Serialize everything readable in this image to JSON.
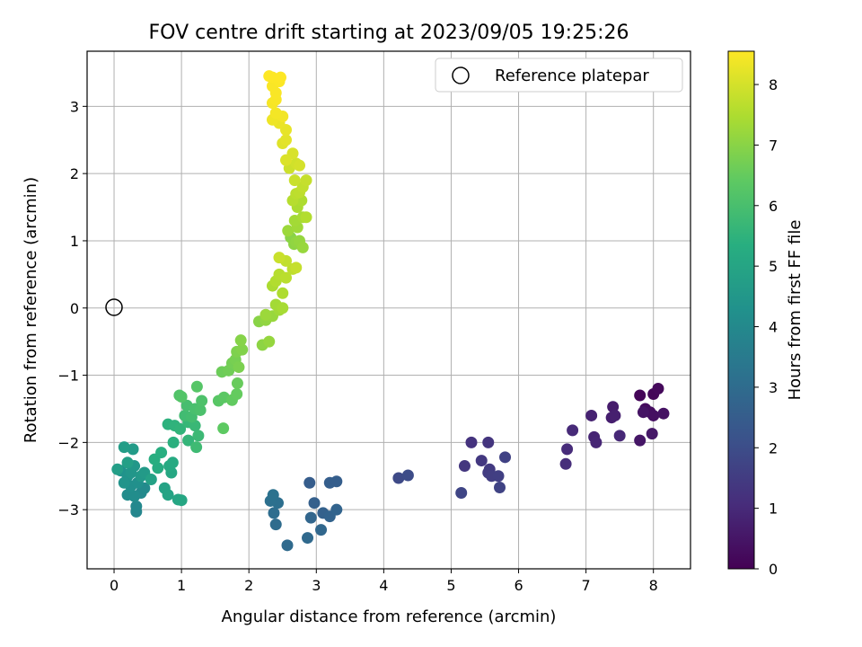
{
  "chart_data": {
    "type": "scatter",
    "title": "FOV centre drift starting at 2023/09/05 19:25:26",
    "xlabel": "Angular distance from reference (arcmin)",
    "ylabel": "Rotation from reference (arcmin)",
    "xlim": [
      -0.4,
      8.55
    ],
    "ylim": [
      -3.88,
      3.82
    ],
    "xticks": [
      0,
      1,
      2,
      3,
      4,
      5,
      6,
      7,
      8
    ],
    "yticks": [
      -3,
      -2,
      -1,
      0,
      1,
      2,
      3
    ],
    "grid": true,
    "legend": {
      "position": "top-right",
      "entries": [
        "Reference platepar"
      ]
    },
    "reference_point": {
      "x": 0,
      "y": 0,
      "label": "Reference platepar"
    },
    "colorbar": {
      "label": "Hours from first FF file",
      "colormap": "viridis",
      "range": [
        0,
        8.55
      ],
      "ticks": [
        0,
        1,
        2,
        3,
        4,
        5,
        6,
        7,
        8
      ]
    },
    "points": [
      [
        7.8,
        -1.3,
        0.1
      ],
      [
        8.0,
        -1.28,
        0.15
      ],
      [
        8.07,
        -1.2,
        0.2
      ],
      [
        7.88,
        -1.5,
        0.25
      ],
      [
        7.95,
        -1.55,
        0.3
      ],
      [
        8.0,
        -1.6,
        0.35
      ],
      [
        8.15,
        -1.57,
        0.4
      ],
      [
        7.85,
        -1.55,
        0.45
      ],
      [
        7.8,
        -1.97,
        0.5
      ],
      [
        7.98,
        -1.87,
        0.55
      ],
      [
        7.4,
        -1.47,
        0.65
      ],
      [
        7.38,
        -1.63,
        0.7
      ],
      [
        7.43,
        -1.6,
        0.75
      ],
      [
        7.08,
        -1.6,
        0.8
      ],
      [
        7.12,
        -1.92,
        0.85
      ],
      [
        7.15,
        -2.0,
        0.9
      ],
      [
        7.5,
        -1.9,
        0.95
      ],
      [
        6.8,
        -1.82,
        1.0
      ],
      [
        6.72,
        -2.1,
        1.05
      ],
      [
        6.7,
        -2.32,
        1.1
      ],
      [
        5.3,
        -2.0,
        1.25
      ],
      [
        5.55,
        -2.0,
        1.3
      ],
      [
        5.2,
        -2.35,
        1.35
      ],
      [
        5.45,
        -2.27,
        1.4
      ],
      [
        5.57,
        -2.4,
        1.45
      ],
      [
        5.55,
        -2.45,
        1.5
      ],
      [
        5.6,
        -2.5,
        1.55
      ],
      [
        5.7,
        -2.5,
        1.6
      ],
      [
        5.8,
        -2.22,
        1.65
      ],
      [
        5.72,
        -2.67,
        1.7
      ],
      [
        5.15,
        -2.75,
        1.75
      ],
      [
        4.22,
        -2.53,
        1.9
      ],
      [
        4.36,
        -2.49,
        1.95
      ],
      [
        2.9,
        -2.6,
        2.5
      ],
      [
        3.2,
        -2.6,
        2.55
      ],
      [
        3.3,
        -2.58,
        2.55
      ],
      [
        2.97,
        -2.9,
        2.6
      ],
      [
        3.1,
        -3.05,
        2.65
      ],
      [
        3.2,
        -3.1,
        2.7
      ],
      [
        3.3,
        -3.0,
        2.75
      ],
      [
        2.92,
        -3.12,
        2.8
      ],
      [
        3.07,
        -3.3,
        2.85
      ],
      [
        2.87,
        -3.42,
        2.9
      ],
      [
        2.57,
        -3.53,
        2.95
      ],
      [
        2.4,
        -3.22,
        3.0
      ],
      [
        2.37,
        -3.05,
        3.05
      ],
      [
        2.43,
        -2.9,
        3.1
      ],
      [
        2.32,
        -2.87,
        3.15
      ],
      [
        2.36,
        -2.78,
        3.2
      ],
      [
        0.33,
        -3.03,
        3.9
      ],
      [
        0.33,
        -2.95,
        3.95
      ],
      [
        0.4,
        -2.75,
        4.0
      ],
      [
        0.45,
        -2.68,
        4.05
      ],
      [
        0.2,
        -2.78,
        4.1
      ],
      [
        0.3,
        -2.8,
        4.15
      ],
      [
        0.25,
        -2.65,
        4.2
      ],
      [
        0.35,
        -2.6,
        4.25
      ],
      [
        0.1,
        -2.42,
        4.3
      ],
      [
        0.2,
        -2.5,
        4.35
      ],
      [
        0.15,
        -2.6,
        4.4
      ],
      [
        0.25,
        -2.45,
        4.45
      ],
      [
        0.3,
        -2.35,
        4.5
      ],
      [
        0.4,
        -2.5,
        4.55
      ],
      [
        0.45,
        -2.45,
        4.6
      ],
      [
        0.28,
        -2.1,
        4.65
      ],
      [
        0.15,
        -2.07,
        4.7
      ],
      [
        0.05,
        -2.4,
        4.75
      ],
      [
        0.2,
        -2.3,
        4.8
      ],
      [
        0.55,
        -2.55,
        4.85
      ],
      [
        0.75,
        -2.68,
        4.9
      ],
      [
        0.8,
        -2.78,
        4.95
      ],
      [
        0.95,
        -2.85,
        5.0
      ],
      [
        1.0,
        -2.86,
        5.05
      ],
      [
        0.85,
        -2.45,
        5.1
      ],
      [
        0.82,
        -2.35,
        5.15
      ],
      [
        0.87,
        -2.3,
        5.2
      ],
      [
        0.65,
        -2.38,
        5.25
      ],
      [
        0.6,
        -2.25,
        5.3
      ],
      [
        0.7,
        -2.15,
        5.35
      ],
      [
        0.88,
        -2.0,
        5.4
      ],
      [
        0.8,
        -1.73,
        5.45
      ],
      [
        0.9,
        -1.75,
        5.5
      ],
      [
        0.98,
        -1.8,
        5.55
      ],
      [
        1.1,
        -1.97,
        5.6
      ],
      [
        1.1,
        -1.7,
        5.65
      ],
      [
        1.2,
        -1.75,
        5.7
      ],
      [
        1.25,
        -1.9,
        5.75
      ],
      [
        1.22,
        -2.07,
        5.8
      ],
      [
        1.05,
        -1.6,
        5.85
      ],
      [
        1.15,
        -1.62,
        5.9
      ],
      [
        1.08,
        -1.45,
        5.95
      ],
      [
        1.2,
        -1.5,
        6.0
      ],
      [
        1.28,
        -1.52,
        6.05
      ],
      [
        1.3,
        -1.38,
        6.1
      ],
      [
        0.97,
        -1.3,
        6.15
      ],
      [
        1.0,
        -1.32,
        6.2
      ],
      [
        1.23,
        -1.17,
        6.25
      ],
      [
        1.55,
        -1.38,
        6.3
      ],
      [
        1.63,
        -1.33,
        6.35
      ],
      [
        1.62,
        -1.79,
        6.4
      ],
      [
        1.75,
        -1.37,
        6.45
      ],
      [
        1.82,
        -1.28,
        6.5
      ],
      [
        1.83,
        -1.12,
        6.55
      ],
      [
        1.6,
        -0.95,
        6.6
      ],
      [
        1.7,
        -0.93,
        6.65
      ],
      [
        1.75,
        -0.82,
        6.7
      ],
      [
        1.8,
        -0.77,
        6.75
      ],
      [
        1.85,
        -0.88,
        6.8
      ],
      [
        1.82,
        -0.65,
        6.85
      ],
      [
        1.9,
        -0.62,
        6.9
      ],
      [
        1.88,
        -0.48,
        6.95
      ],
      [
        2.15,
        -0.2,
        7.0
      ],
      [
        2.2,
        -0.55,
        7.05
      ],
      [
        2.25,
        -0.18,
        7.1
      ],
      [
        2.3,
        -0.5,
        7.15
      ],
      [
        2.35,
        -0.12,
        7.2
      ],
      [
        2.25,
        -0.1,
        7.25
      ],
      [
        2.45,
        -0.03,
        7.3
      ],
      [
        2.4,
        0.05,
        7.35
      ],
      [
        2.5,
        0.0,
        7.4
      ],
      [
        2.35,
        0.33,
        7.45
      ],
      [
        2.5,
        0.22,
        7.5
      ],
      [
        2.4,
        0.4,
        7.55
      ],
      [
        2.45,
        0.5,
        7.6
      ],
      [
        2.55,
        0.45,
        7.65
      ],
      [
        2.65,
        0.58,
        7.7
      ],
      [
        2.55,
        0.7,
        7.75
      ],
      [
        2.7,
        0.6,
        7.8
      ],
      [
        2.45,
        0.75,
        7.85
      ],
      [
        2.62,
        1.05,
        7.0
      ],
      [
        2.67,
        0.95,
        7.05
      ],
      [
        2.7,
        0.98,
        7.1
      ],
      [
        2.75,
        1.0,
        7.15
      ],
      [
        2.8,
        0.9,
        7.2
      ],
      [
        2.58,
        1.15,
        7.25
      ],
      [
        2.72,
        1.2,
        7.3
      ],
      [
        2.68,
        1.3,
        7.35
      ],
      [
        2.8,
        1.35,
        7.4
      ],
      [
        2.72,
        1.5,
        7.45
      ],
      [
        2.78,
        1.6,
        7.5
      ],
      [
        2.85,
        1.35,
        7.55
      ],
      [
        2.65,
        1.6,
        7.6
      ],
      [
        2.7,
        1.7,
        7.65
      ],
      [
        2.75,
        1.72,
        7.7
      ],
      [
        2.8,
        1.8,
        7.75
      ],
      [
        2.85,
        1.9,
        7.8
      ],
      [
        2.68,
        1.9,
        7.85
      ],
      [
        2.6,
        2.08,
        7.9
      ],
      [
        2.7,
        2.15,
        7.95
      ],
      [
        2.75,
        2.12,
        8.0
      ],
      [
        2.65,
        2.3,
        8.05
      ],
      [
        2.55,
        2.2,
        8.1
      ],
      [
        2.5,
        2.45,
        8.15
      ],
      [
        2.55,
        2.5,
        8.2
      ],
      [
        2.55,
        2.65,
        8.25
      ],
      [
        2.45,
        2.75,
        8.3
      ],
      [
        2.35,
        2.8,
        8.35
      ],
      [
        2.5,
        2.85,
        8.4
      ],
      [
        2.4,
        2.9,
        8.42
      ],
      [
        2.35,
        3.05,
        8.45
      ],
      [
        2.4,
        3.1,
        8.48
      ],
      [
        2.35,
        3.3,
        8.5
      ],
      [
        2.45,
        3.37,
        8.52
      ],
      [
        2.35,
        3.43,
        8.53
      ],
      [
        2.47,
        3.43,
        8.55
      ],
      [
        2.3,
        3.45,
        8.55
      ],
      [
        2.4,
        3.2,
        8.5
      ]
    ]
  }
}
